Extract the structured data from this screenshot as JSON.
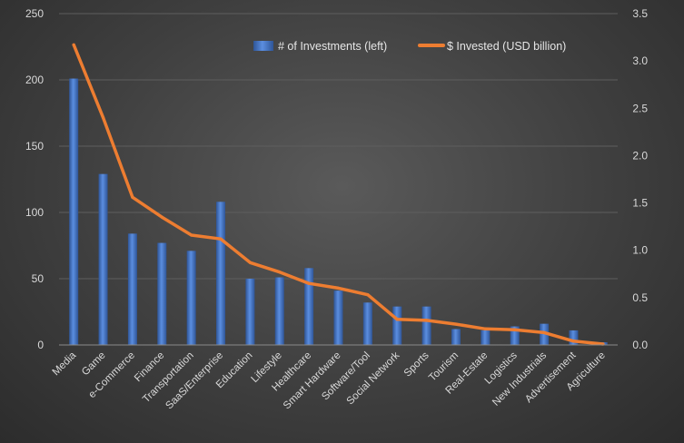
{
  "chart_data": {
    "type": "bar+line",
    "categories": [
      "Media",
      "Game",
      "e-Commerce",
      "Finance",
      "Transportation",
      "SaaS/Enterprise",
      "Education",
      "Lifestyle",
      "Healthcare",
      "Smart Hardware",
      "Software/Tool",
      "Social Network",
      "Sports",
      "Tourism",
      "Real-Estate",
      "Logistics",
      "New Industrials",
      "Advertisement",
      "Agriculture"
    ],
    "series": [
      {
        "name": "# of Investments (left)",
        "type": "bar",
        "axis": "left",
        "color": "#4472c4",
        "values": [
          201,
          129,
          84,
          77,
          71,
          108,
          50,
          51,
          58,
          41,
          32,
          29,
          29,
          12,
          11,
          14,
          16,
          11,
          2
        ]
      },
      {
        "name": "$ Invested (USD billion)",
        "type": "line",
        "axis": "right",
        "color": "#ed7d31",
        "values": [
          3.17,
          2.4,
          1.56,
          1.35,
          1.16,
          1.12,
          0.87,
          0.77,
          0.65,
          0.6,
          0.53,
          0.27,
          0.26,
          0.22,
          0.17,
          0.16,
          0.13,
          0.04,
          0.01
        ]
      }
    ],
    "y_left": {
      "min": 0,
      "max": 250,
      "ticks": [
        "0",
        "50",
        "100",
        "150",
        "200",
        "250"
      ]
    },
    "y_right": {
      "min": 0,
      "max": 3.5,
      "ticks": [
        "0.0",
        "0.5",
        "1.0",
        "1.5",
        "2.0",
        "2.5",
        "3.0",
        "3.5"
      ]
    },
    "grid": true,
    "legend_position": "top-right"
  }
}
